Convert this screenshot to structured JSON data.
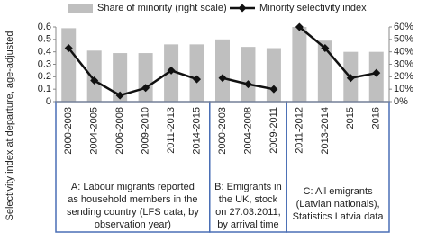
{
  "chart_data": {
    "type": "bar-line",
    "y_axis_label": "Selectivity index at departure, age-adjusted",
    "ylim": [
      0,
      0.6
    ],
    "yticks": [
      0,
      0.1,
      0.2,
      0.3,
      0.4,
      0.5,
      0.6
    ],
    "y2lim": [
      0,
      60
    ],
    "y2ticks": [
      {
        "value": 0,
        "label": "0%"
      },
      {
        "value": 10,
        "label": "10%"
      },
      {
        "value": 20,
        "label": "20%"
      },
      {
        "value": 30,
        "label": "30%"
      },
      {
        "value": 40,
        "label": "40%"
      },
      {
        "value": 50,
        "label": "50%"
      },
      {
        "value": 60,
        "label": "60%"
      }
    ],
    "series": [
      {
        "name": "Share of minority (right scale)",
        "color": "#bfbfbf",
        "axis": "y2",
        "type": "bar"
      },
      {
        "name": "Minority selectivity index",
        "color": "#111111",
        "type": "line"
      }
    ],
    "groups": [
      {
        "label_lines": [
          "A: Labour migrants reported",
          "as household members in the",
          "sending country (LFS data, by",
          "observation year)"
        ],
        "categories": [
          "2000-2003",
          "2004-2005",
          "2006-2008",
          "2009-2010",
          "2011-2013",
          "2014-2015"
        ],
        "series_values": [
          [
            59,
            41,
            39,
            39,
            46,
            46
          ],
          [
            0.43,
            0.17,
            0.05,
            0.11,
            0.25,
            0.18
          ]
        ]
      },
      {
        "label_lines": [
          "B: Emigrants in",
          "the UK, stock",
          "on 27.03.2011,",
          "by arrival time"
        ],
        "categories": [
          "2000-2003",
          "2004-2008",
          "2009-2011"
        ],
        "series_values": [
          [
            50,
            44,
            43
          ],
          [
            0.19,
            0.14,
            0.1
          ]
        ]
      },
      {
        "label_lines": [
          "C: All emigrants",
          "(Latvian nationals),",
          "Statistics Latvia data"
        ],
        "categories": [
          "2011-2012",
          "2013-2014",
          "2015",
          "2016"
        ],
        "series_values": [
          [
            60,
            49,
            40,
            40
          ],
          [
            0.6,
            0.43,
            0.19,
            0.23
          ]
        ]
      }
    ]
  }
}
